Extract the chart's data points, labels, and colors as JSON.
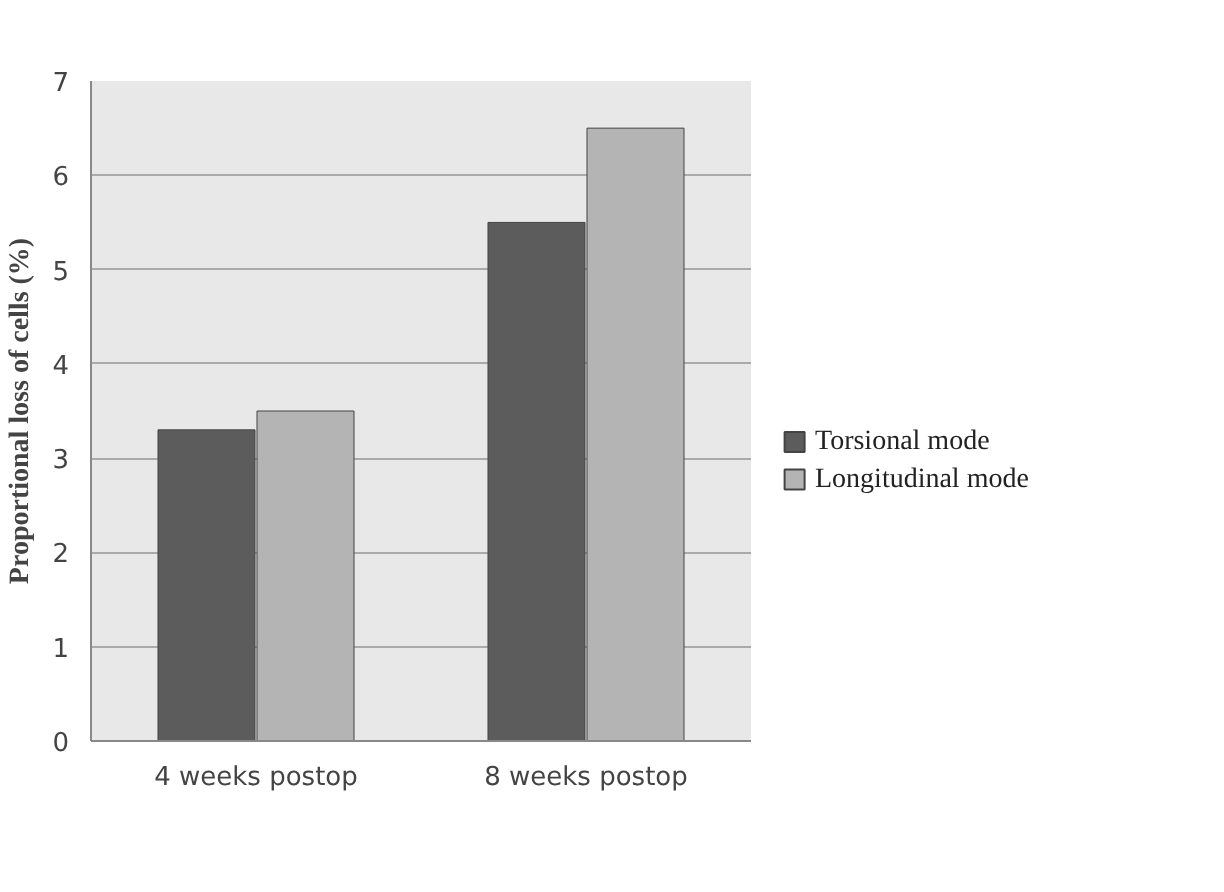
{
  "chart_data": {
    "type": "bar",
    "ylabel": "Proportional loss of cells (%)",
    "categories": [
      "4 weeks postop",
      "8 weeks postop"
    ],
    "series": [
      {
        "name": "Torsional mode",
        "color": "#5c5c5c",
        "values": [
          3.3,
          5.5
        ]
      },
      {
        "name": "Longitudinal mode",
        "color": "#b4b4b4",
        "values": [
          3.5,
          6.5
        ]
      }
    ],
    "ylim": [
      0,
      7
    ],
    "yticks": [
      0,
      1,
      2,
      3,
      4,
      5,
      6,
      7
    ],
    "grid": "y",
    "legend": "right"
  }
}
